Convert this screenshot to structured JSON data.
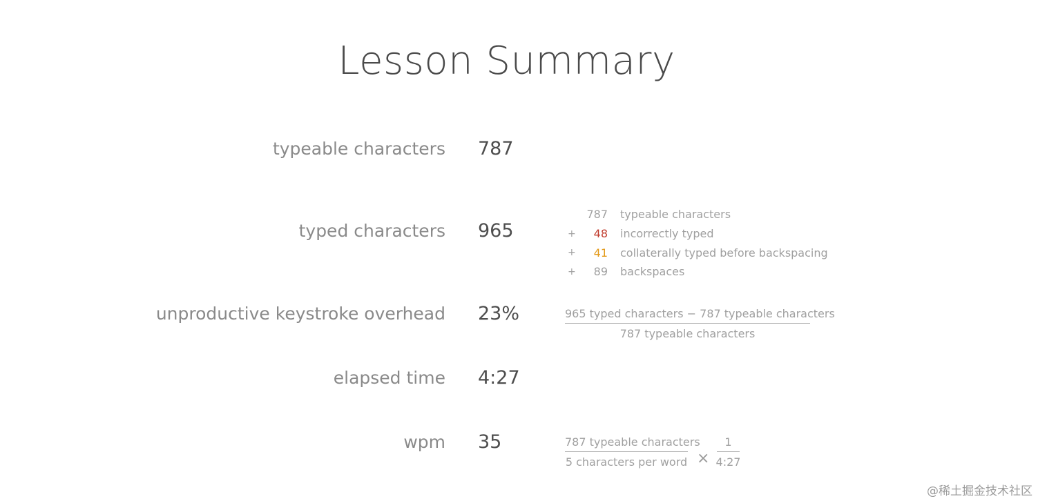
{
  "page": {
    "title": "Lesson Summary"
  },
  "rows": [
    {
      "label": "typeable characters",
      "value": "787"
    },
    {
      "label": "typed characters",
      "value": "965"
    },
    {
      "label": "unproductive keystroke overhead",
      "value": "23%"
    },
    {
      "label": "elapsed time",
      "value": "4:27"
    },
    {
      "label": "wpm",
      "value": "35"
    }
  ],
  "breakdown": [
    {
      "op": "",
      "num": "787",
      "text": "typeable characters"
    },
    {
      "op": "+",
      "num": "48",
      "text": "incorrectly typed",
      "color": "#c03a2b"
    },
    {
      "op": "+",
      "num": "41",
      "text": "collaterally typed before backspacing",
      "color": "#e39a1b"
    },
    {
      "op": "+",
      "num": "89",
      "text": "backspaces"
    }
  ],
  "overhead_formula": {
    "numerator": "965 typed characters − 787 typeable characters",
    "denominator": "787 typeable characters"
  },
  "wpm_formula": {
    "left_numerator": "787 typeable characters",
    "left_denominator": "5 characters per word",
    "operator": "×",
    "right_numerator": "1",
    "right_denominator": "4:27"
  },
  "watermark": "@稀土掘金技术社区"
}
